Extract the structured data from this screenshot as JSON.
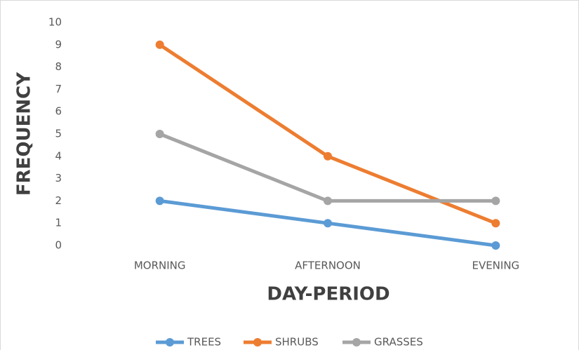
{
  "chart_data": {
    "type": "line",
    "x_label": "DAY-PERIOD",
    "y_label": "FREQUENCY",
    "categories": [
      "MORNING",
      "AFTERNOON",
      "EVENING"
    ],
    "series": [
      {
        "name": "TREES",
        "color": "#5b9bd5",
        "values": [
          2,
          1,
          0
        ]
      },
      {
        "name": "SHRUBS",
        "color": "#ed7d31",
        "values": [
          9,
          4,
          1
        ]
      },
      {
        "name": "GRASSES",
        "color": "#a5a5a5",
        "values": [
          5,
          2,
          2
        ]
      }
    ],
    "ylim": [
      0,
      10
    ],
    "yticks": [
      0,
      1,
      2,
      3,
      4,
      5,
      6,
      7,
      8,
      9,
      10
    ],
    "grid": false,
    "legend": "bottom"
  }
}
